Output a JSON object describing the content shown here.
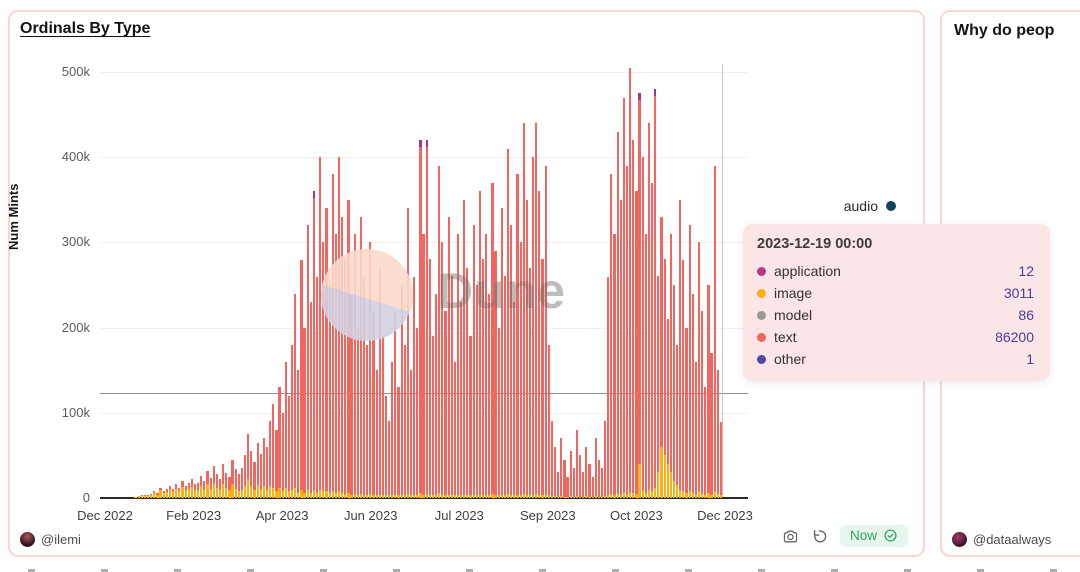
{
  "card1": {
    "title": "Ordinals By Type",
    "author": "@ilemi",
    "toolbar": {
      "status_label": "Now"
    }
  },
  "card2": {
    "title": "Why do peop",
    "author": "@dataalways"
  },
  "watermark": {
    "text": "Dune"
  },
  "chart_data": {
    "type": "bar",
    "stacked": true,
    "title": "Ordinals By Type",
    "ylabel": "Num Mints",
    "xlabel": "",
    "value_unit": "thousand mints per day (approx, read from pixels)",
    "ylim": [
      0,
      500000
    ],
    "grid": "horizontal",
    "reference_line_value_k": 123,
    "y_axis": {
      "ticks": [
        "500k",
        "400k",
        "300k",
        "200k",
        "100k",
        "0"
      ]
    },
    "x_axis": {
      "ticks": [
        "Dec 2022",
        "Feb 2023",
        "Apr 2023",
        "Jun 2023",
        "Jul 2023",
        "Sep 2023",
        "Oct 2023",
        "Dec 2023"
      ]
    },
    "series_legend": [
      {
        "name": "application",
        "color": "#b5388d"
      },
      {
        "name": "image",
        "color": "#fcae13"
      },
      {
        "name": "model",
        "color": "#999999"
      },
      {
        "name": "text",
        "color": "#f4655f"
      },
      {
        "name": "other",
        "color": "#4f46a5"
      },
      {
        "name": "audio",
        "color": "#15425a"
      }
    ],
    "legend_visible": {
      "label": "audio",
      "color": "#15425a"
    },
    "colors": {
      "text_red": "#f4655f",
      "image_orange": "#fcae13",
      "tip_purple": "#993a9b"
    },
    "bars_format": "[total_k, image_k, purple_tip_flag?] sampled ~every 2 days Dec 2022 - Dec 19 2023",
    "bars": [
      [
        0,
        0
      ],
      [
        0,
        0
      ],
      [
        0,
        0
      ],
      [
        0,
        0
      ],
      [
        0,
        0
      ],
      [
        0,
        0
      ],
      [
        0,
        0
      ],
      [
        0,
        0
      ],
      [
        0,
        0
      ],
      [
        0,
        0
      ],
      [
        0,
        0
      ],
      [
        1,
        1
      ],
      [
        2,
        2
      ],
      [
        3,
        2
      ],
      [
        4,
        3
      ],
      [
        3,
        2
      ],
      [
        5,
        4
      ],
      [
        8,
        6
      ],
      [
        6,
        4
      ],
      [
        12,
        9
      ],
      [
        8,
        6
      ],
      [
        10,
        7
      ],
      [
        14,
        10
      ],
      [
        10,
        7
      ],
      [
        16,
        11
      ],
      [
        12,
        8
      ],
      [
        20,
        13
      ],
      [
        14,
        9
      ],
      [
        18,
        11
      ],
      [
        22,
        13
      ],
      [
        16,
        9
      ],
      [
        18,
        10
      ],
      [
        26,
        14
      ],
      [
        20,
        10
      ],
      [
        32,
        16
      ],
      [
        24,
        11
      ],
      [
        38,
        18
      ],
      [
        28,
        12
      ],
      [
        22,
        9
      ],
      [
        40,
        16
      ],
      [
        30,
        12
      ],
      [
        25,
        9
      ],
      [
        45,
        16
      ],
      [
        34,
        11
      ],
      [
        28,
        8
      ],
      [
        35,
        10
      ],
      [
        50,
        14
      ],
      [
        75,
        22
      ],
      [
        55,
        14
      ],
      [
        42,
        10
      ],
      [
        65,
        15
      ],
      [
        52,
        11
      ],
      [
        70,
        14
      ],
      [
        60,
        10
      ],
      [
        90,
        14
      ],
      [
        110,
        12
      ],
      [
        80,
        8
      ],
      [
        130,
        12
      ],
      [
        100,
        8
      ],
      [
        160,
        12
      ],
      [
        120,
        8
      ],
      [
        180,
        10
      ],
      [
        240,
        12
      ],
      [
        150,
        6
      ],
      [
        280,
        10
      ],
      [
        200,
        6
      ],
      [
        320,
        10
      ],
      [
        230,
        6
      ],
      [
        360,
        10,
        1
      ],
      [
        260,
        6
      ],
      [
        400,
        10
      ],
      [
        300,
        8
      ],
      [
        340,
        8
      ],
      [
        250,
        6
      ],
      [
        380,
        8
      ],
      [
        310,
        6
      ],
      [
        400,
        8
      ],
      [
        330,
        6
      ],
      [
        280,
        5
      ],
      [
        350,
        6
      ],
      [
        240,
        4
      ],
      [
        310,
        5
      ],
      [
        200,
        4
      ],
      [
        330,
        5
      ],
      [
        260,
        4
      ],
      [
        180,
        4
      ],
      [
        300,
        5
      ],
      [
        220,
        4
      ],
      [
        150,
        3
      ],
      [
        270,
        4
      ],
      [
        190,
        3
      ],
      [
        120,
        3
      ],
      [
        90,
        3
      ],
      [
        160,
        4
      ],
      [
        220,
        4
      ],
      [
        130,
        3
      ],
      [
        250,
        4
      ],
      [
        180,
        3
      ],
      [
        340,
        5
      ],
      [
        150,
        3
      ],
      [
        260,
        4
      ],
      [
        200,
        3
      ],
      [
        420,
        6,
        1
      ],
      [
        310,
        4
      ],
      [
        420,
        5,
        1
      ],
      [
        280,
        4
      ],
      [
        190,
        3
      ],
      [
        240,
        4
      ],
      [
        390,
        6
      ],
      [
        300,
        4
      ],
      [
        220,
        3
      ],
      [
        330,
        4
      ],
      [
        260,
        3
      ],
      [
        160,
        3
      ],
      [
        310,
        4
      ],
      [
        230,
        3
      ],
      [
        350,
        4
      ],
      [
        270,
        3
      ],
      [
        190,
        3
      ],
      [
        320,
        4
      ],
      [
        250,
        3
      ],
      [
        360,
        4
      ],
      [
        280,
        3
      ],
      [
        310,
        4
      ],
      [
        240,
        3
      ],
      [
        370,
        5
      ],
      [
        290,
        3
      ],
      [
        200,
        3
      ],
      [
        340,
        4
      ],
      [
        260,
        3
      ],
      [
        410,
        5
      ],
      [
        320,
        4
      ],
      [
        230,
        3
      ],
      [
        380,
        4
      ],
      [
        300,
        3
      ],
      [
        440,
        5
      ],
      [
        350,
        4
      ],
      [
        270,
        3
      ],
      [
        400,
        4
      ],
      [
        440,
        5
      ],
      [
        360,
        4
      ],
      [
        280,
        3
      ],
      [
        390,
        4
      ],
      [
        180,
        3
      ],
      [
        90,
        2
      ],
      [
        60,
        2
      ],
      [
        30,
        1
      ],
      [
        70,
        2
      ],
      [
        45,
        1
      ],
      [
        25,
        1
      ],
      [
        55,
        2
      ],
      [
        35,
        1
      ],
      [
        80,
        2
      ],
      [
        50,
        1
      ],
      [
        30,
        1
      ],
      [
        60,
        2
      ],
      [
        40,
        1
      ],
      [
        25,
        1
      ],
      [
        70,
        2
      ],
      [
        45,
        1
      ],
      [
        35,
        1
      ],
      [
        90,
        2
      ],
      [
        260,
        4
      ],
      [
        380,
        5
      ],
      [
        310,
        4
      ],
      [
        430,
        5
      ],
      [
        350,
        4
      ],
      [
        470,
        6
      ],
      [
        390,
        4
      ],
      [
        505,
        6
      ],
      [
        420,
        6
      ],
      [
        360,
        5
      ],
      [
        475,
        40,
        1
      ],
      [
        400,
        8
      ],
      [
        310,
        6
      ],
      [
        440,
        10
      ],
      [
        370,
        8
      ],
      [
        480,
        12,
        1
      ],
      [
        260,
        30
      ],
      [
        330,
        60
      ],
      [
        280,
        50
      ],
      [
        210,
        40
      ],
      [
        310,
        30
      ],
      [
        250,
        20
      ],
      [
        180,
        15
      ],
      [
        350,
        10
      ],
      [
        280,
        8
      ],
      [
        200,
        6
      ],
      [
        320,
        8
      ],
      [
        240,
        6
      ],
      [
        160,
        4
      ],
      [
        300,
        8
      ],
      [
        220,
        5
      ],
      [
        130,
        4
      ],
      [
        250,
        6
      ],
      [
        170,
        4
      ],
      [
        390,
        8
      ],
      [
        150,
        5
      ],
      [
        89,
        3
      ]
    ],
    "tooltip": {
      "title": "2023-12-19 00:00",
      "rows": [
        {
          "label": "application",
          "value": 12,
          "color": "#b5388d"
        },
        {
          "label": "image",
          "value": 3011,
          "color": "#fcae13"
        },
        {
          "label": "model",
          "value": 86,
          "color": "#999999"
        },
        {
          "label": "text",
          "value": 86200,
          "color": "#f4655f"
        },
        {
          "label": "other",
          "value": 1,
          "color": "#4f46a5"
        }
      ]
    }
  }
}
